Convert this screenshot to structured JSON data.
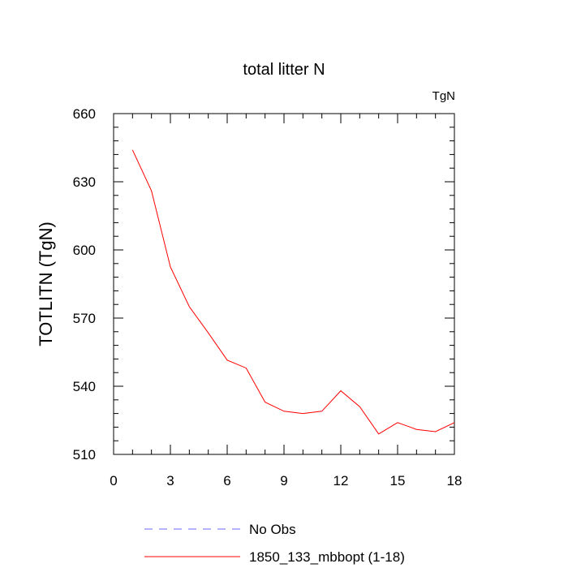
{
  "chart_data": {
    "type": "line",
    "title": "total litter N",
    "units_label": "TgN",
    "ylabel": "TOTLITN  (TgN)",
    "xlabel": "",
    "xlim": [
      0,
      18
    ],
    "ylim": [
      510,
      660
    ],
    "x_ticks": [
      0,
      3,
      6,
      9,
      12,
      15,
      18
    ],
    "y_ticks": [
      510,
      540,
      570,
      600,
      630,
      660
    ],
    "grid": false,
    "legend_position": "bottom",
    "series": [
      {
        "name": "1850_133_mbbopt (1-18)",
        "color": "#ff0000",
        "dash": "solid",
        "x": [
          1,
          2,
          3,
          4,
          5,
          6,
          7,
          8,
          9,
          10,
          11,
          12,
          13,
          14,
          15,
          16,
          17,
          18
        ],
        "y": [
          644,
          626,
          592.5,
          575,
          563.5,
          551.5,
          548,
          533,
          529,
          528,
          529,
          538,
          531,
          519,
          524,
          521,
          520,
          524
        ]
      }
    ],
    "legend": [
      {
        "label": "No Obs",
        "color": "#6a6aff",
        "dash": "dashed"
      },
      {
        "label": "1850_133_mbbopt (1-18)",
        "color": "#ff0000",
        "dash": "solid"
      }
    ]
  }
}
